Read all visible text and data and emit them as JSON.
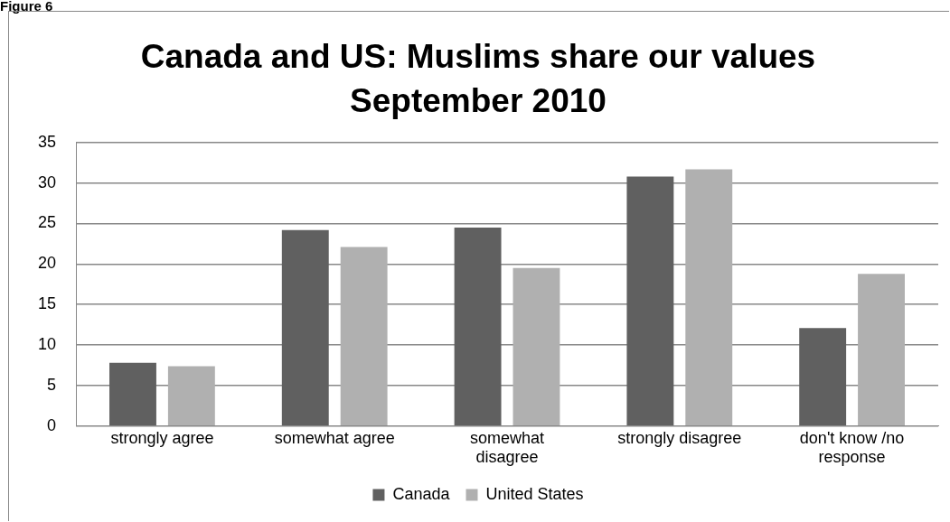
{
  "chart_data": {
    "type": "bar",
    "title": "Canada and US: Muslims share our values",
    "subtitle": "September 2010",
    "annotations": [
      "Figure 6"
    ],
    "categories": [
      "strongly agree",
      "somewhat agree",
      "somewhat disagree",
      "strongly disagree",
      "don't know /no response"
    ],
    "series": [
      {
        "name": "Canada",
        "color": "#606060",
        "values": [
          7.8,
          24.2,
          24.5,
          30.8,
          12.1
        ]
      },
      {
        "name": "United States",
        "color": "#b0b0b0",
        "values": [
          7.4,
          22.1,
          19.5,
          31.7,
          18.8
        ]
      }
    ],
    "ylim": [
      0,
      35
    ],
    "yticks": [
      0,
      5,
      10,
      15,
      20,
      25,
      30,
      35
    ],
    "grid": "y",
    "legend": "bottom"
  }
}
